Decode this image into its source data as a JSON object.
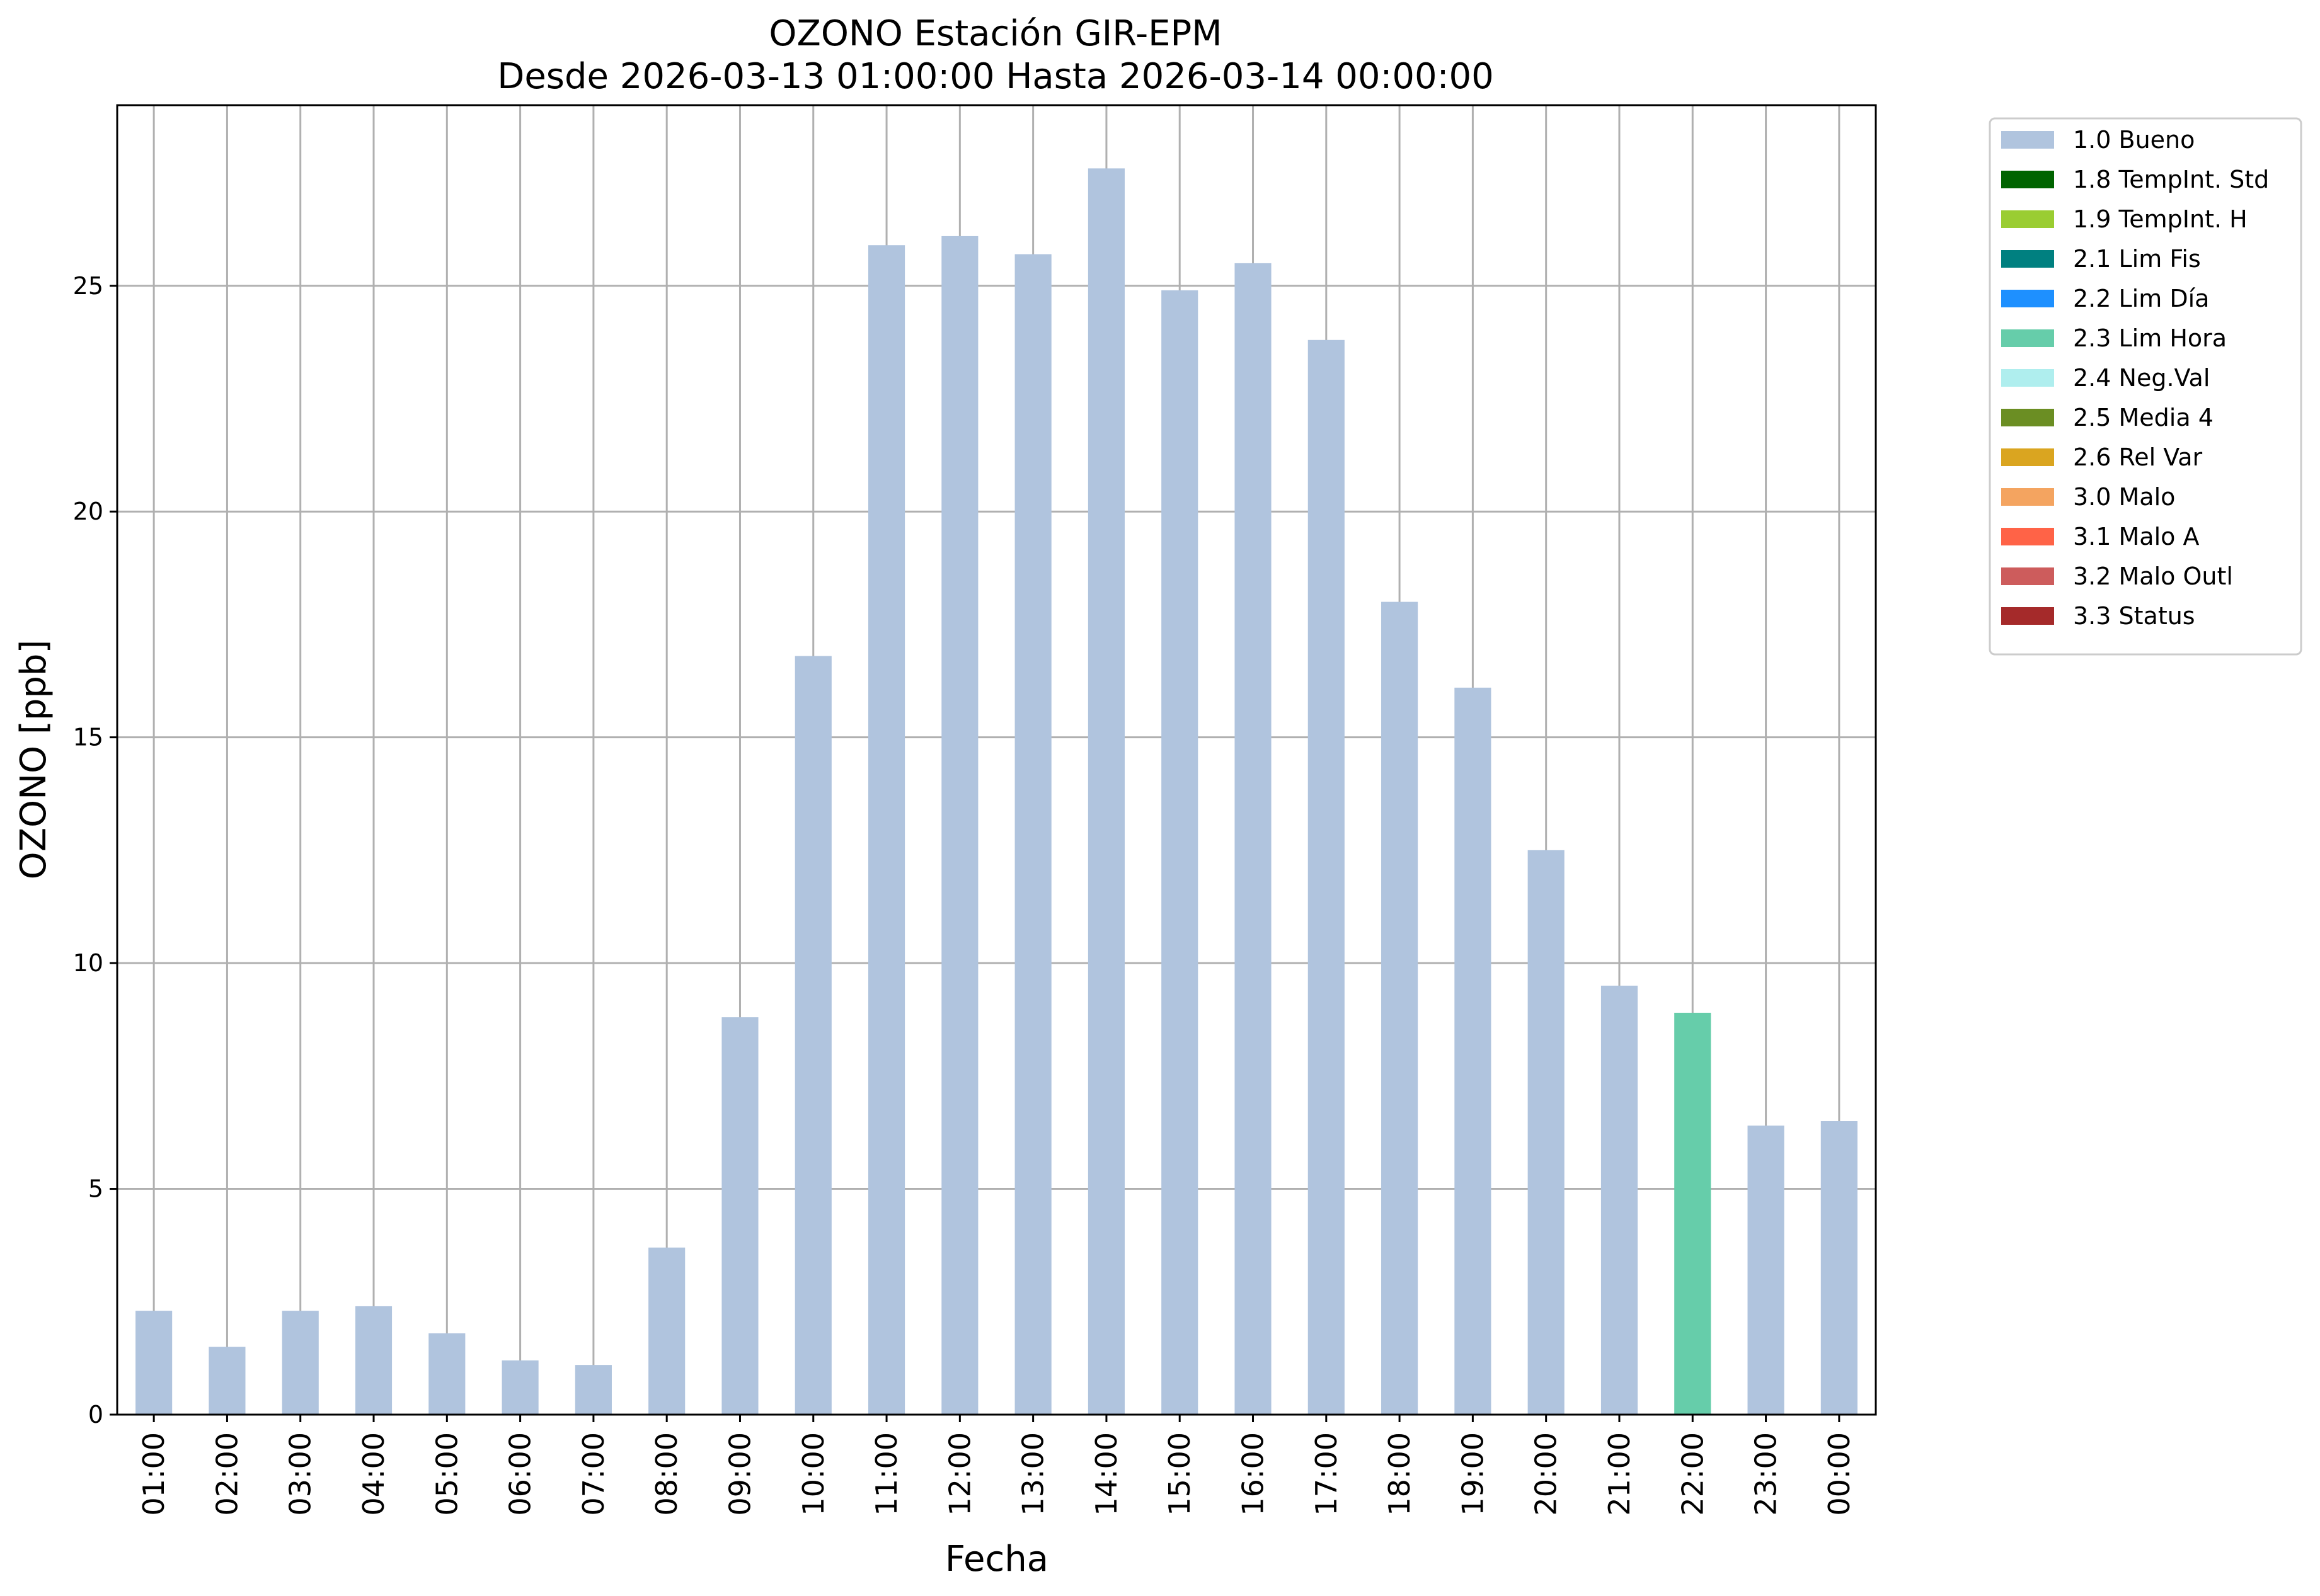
{
  "chart_data": {
    "type": "bar",
    "title_lines": [
      "OZONO Estación GIR-EPM",
      "Desde 2026-03-13 01:00:00 Hasta 2026-03-14 00:00:00"
    ],
    "xlabel": "Fecha",
    "ylabel": "OZONO [ppb]",
    "ylim": [
      0,
      29
    ],
    "yticks": [
      0,
      5,
      10,
      15,
      20,
      25
    ],
    "grid": true,
    "legend_placement": "outside top-right",
    "categories": [
      "01:00",
      "02:00",
      "03:00",
      "04:00",
      "05:00",
      "06:00",
      "07:00",
      "08:00",
      "09:00",
      "10:00",
      "11:00",
      "12:00",
      "13:00",
      "14:00",
      "15:00",
      "16:00",
      "17:00",
      "18:00",
      "19:00",
      "20:00",
      "21:00",
      "22:00",
      "23:00",
      "00:00"
    ],
    "values": [
      2.3,
      1.5,
      2.3,
      2.4,
      1.8,
      1.2,
      1.1,
      3.7,
      8.8,
      16.8,
      25.9,
      26.1,
      25.7,
      27.6,
      24.9,
      25.5,
      23.8,
      18.0,
      16.1,
      12.5,
      9.5,
      8.9,
      6.4,
      6.5
    ],
    "bar_flags": [
      "1.0 Bueno",
      "1.0 Bueno",
      "1.0 Bueno",
      "1.0 Bueno",
      "1.0 Bueno",
      "1.0 Bueno",
      "1.0 Bueno",
      "1.0 Bueno",
      "1.0 Bueno",
      "1.0 Bueno",
      "1.0 Bueno",
      "1.0 Bueno",
      "1.0 Bueno",
      "1.0 Bueno",
      "1.0 Bueno",
      "1.0 Bueno",
      "1.0 Bueno",
      "1.0 Bueno",
      "1.0 Bueno",
      "1.0 Bueno",
      "1.0 Bueno",
      "2.3 Lim Hora",
      "1.0 Bueno",
      "1.0 Bueno"
    ],
    "legend": [
      {
        "label": "1.0 Bueno",
        "color": "#b0c4de"
      },
      {
        "label": "1.8 TempInt. Std",
        "color": "#006400"
      },
      {
        "label": "1.9 TempInt. H",
        "color": "#9acd32"
      },
      {
        "label": "2.1 Lim Fis",
        "color": "#008080"
      },
      {
        "label": "2.2 Lim Día",
        "color": "#1e90ff"
      },
      {
        "label": "2.3 Lim Hora",
        "color": "#66cdaa"
      },
      {
        "label": "2.4 Neg.Val",
        "color": "#afeeee"
      },
      {
        "label": "2.5 Media 4",
        "color": "#6b8e23"
      },
      {
        "label": "2.6 Rel Var",
        "color": "#daa520"
      },
      {
        "label": "3.0 Malo",
        "color": "#f4a460"
      },
      {
        "label": "3.1 Malo A",
        "color": "#ff6347"
      },
      {
        "label": "3.2 Malo Outl",
        "color": "#cd5c5c"
      },
      {
        "label": "3.3 Status",
        "color": "#a52a2a"
      }
    ],
    "grid_color": "#b0b0b0"
  }
}
